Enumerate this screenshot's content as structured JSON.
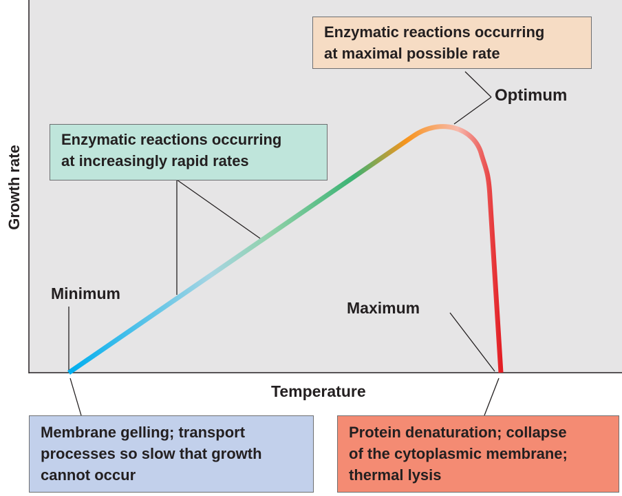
{
  "colors": {
    "plot_background": "#e6e5e6",
    "cold_end": "#00aeef",
    "midrange": "#3bb273",
    "optimum": "#f7941d",
    "hot_end": "#e31e24",
    "box_growth": "#bfe5db",
    "box_optimum": "#f6dcc4",
    "box_minimum": "#c2d0eb",
    "box_maximum": "#f48b73"
  },
  "labels": {
    "y_axis": "Growth rate",
    "x_axis": "Temperature",
    "minimum": "Minimum",
    "maximum": "Maximum",
    "optimum": "Optimum"
  },
  "boxes": {
    "optimum": [
      "Enzymatic reactions occurring",
      "at maximal possible rate"
    ],
    "growth": [
      "Enzymatic reactions occurring",
      "at increasingly rapid rates"
    ],
    "minimum": [
      "Membrane gelling; transport",
      "processes so slow that growth",
      "cannot occur"
    ],
    "maximum": [
      "Protein denaturation; collapse",
      "of the cytoplasmic membrane;",
      "thermal lysis"
    ]
  }
}
